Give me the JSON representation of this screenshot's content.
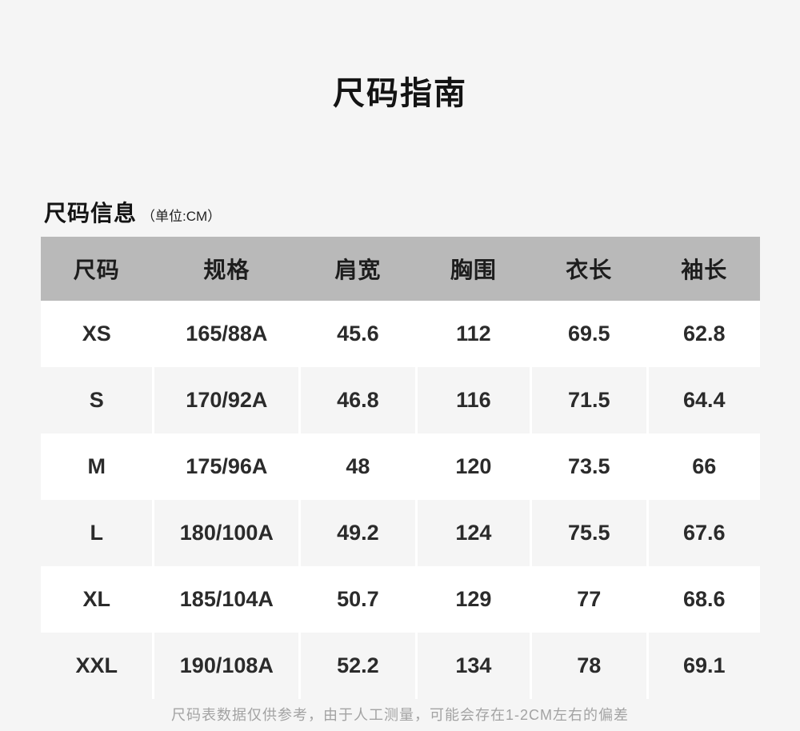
{
  "page": {
    "title": "尺码指南",
    "section_heading": "尺码信息",
    "unit_note": "（单位:CM）",
    "footer_note": "尺码表数据仅供参考，由于人工测量，可能会存在1-2CM左右的偏差"
  },
  "size_table": {
    "columns": [
      "尺码",
      "规格",
      "肩宽",
      "胸围",
      "衣长",
      "袖长"
    ],
    "rows": [
      {
        "size": "XS",
        "spec": "165/88A",
        "shoulder": "45.6",
        "chest": "112",
        "length": "69.5",
        "sleeve": "62.8"
      },
      {
        "size": "S",
        "spec": "170/92A",
        "shoulder": "46.8",
        "chest": "116",
        "length": "71.5",
        "sleeve": "64.4"
      },
      {
        "size": "M",
        "spec": "175/96A",
        "shoulder": "48",
        "chest": "120",
        "length": "73.5",
        "sleeve": "66"
      },
      {
        "size": "L",
        "spec": "180/100A",
        "shoulder": "49.2",
        "chest": "124",
        "length": "75.5",
        "sleeve": "67.6"
      },
      {
        "size": "XL",
        "spec": "185/104A",
        "shoulder": "50.7",
        "chest": "129",
        "length": "77",
        "sleeve": "68.6"
      },
      {
        "size": "XXL",
        "spec": "190/108A",
        "shoulder": "52.2",
        "chest": "134",
        "length": "78",
        "sleeve": "69.1"
      }
    ]
  },
  "colors": {
    "page_bg": "#f5f5f5",
    "table_header_bg": "#b9b9b9",
    "row_white_bg": "#ffffff",
    "row_gray_bg": "#f5f5f5",
    "cell_separator": "#ffffff",
    "text_primary": "#1d1d1d",
    "footer_text": "#a3a3a3"
  }
}
